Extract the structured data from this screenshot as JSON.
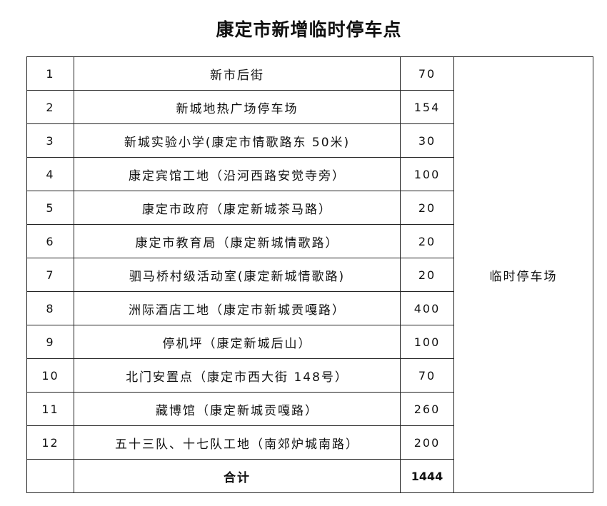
{
  "title": "康定市新增临时停车点",
  "rows": [
    {
      "no": "1",
      "name": "新市后街",
      "count": "70"
    },
    {
      "no": "2",
      "name": "新城地热广场停车场",
      "count": "154"
    },
    {
      "no": "3",
      "name": "新城实验小学(康定市情歌路东 50米)",
      "count": "30"
    },
    {
      "no": "4",
      "name": "康定宾馆工地（沿河西路安觉寺旁）",
      "count": "100"
    },
    {
      "no": "5",
      "name": "康定市政府（康定新城茶马路）",
      "count": "20"
    },
    {
      "no": "6",
      "name": "康定市教育局（康定新城情歌路）",
      "count": "20"
    },
    {
      "no": "7",
      "name": "驷马桥村级活动室(康定新城情歌路)",
      "count": "20"
    },
    {
      "no": "8",
      "name": "洲际酒店工地（康定市新城贡嘎路）",
      "count": "400"
    },
    {
      "no": "9",
      "name": "停机坪（康定新城后山）",
      "count": "100"
    },
    {
      "no": "10",
      "name": "北门安置点（康定市西大街 148号）",
      "count": "70"
    },
    {
      "no": "11",
      "name": "藏博馆（康定新城贡嘎路）",
      "count": "260"
    },
    {
      "no": "12",
      "name": "五十三队、十七队工地（南郊炉城南路）",
      "count": "200"
    }
  ],
  "type_label": "临时停车场",
  "total": {
    "label": "合计",
    "count": "1444"
  }
}
